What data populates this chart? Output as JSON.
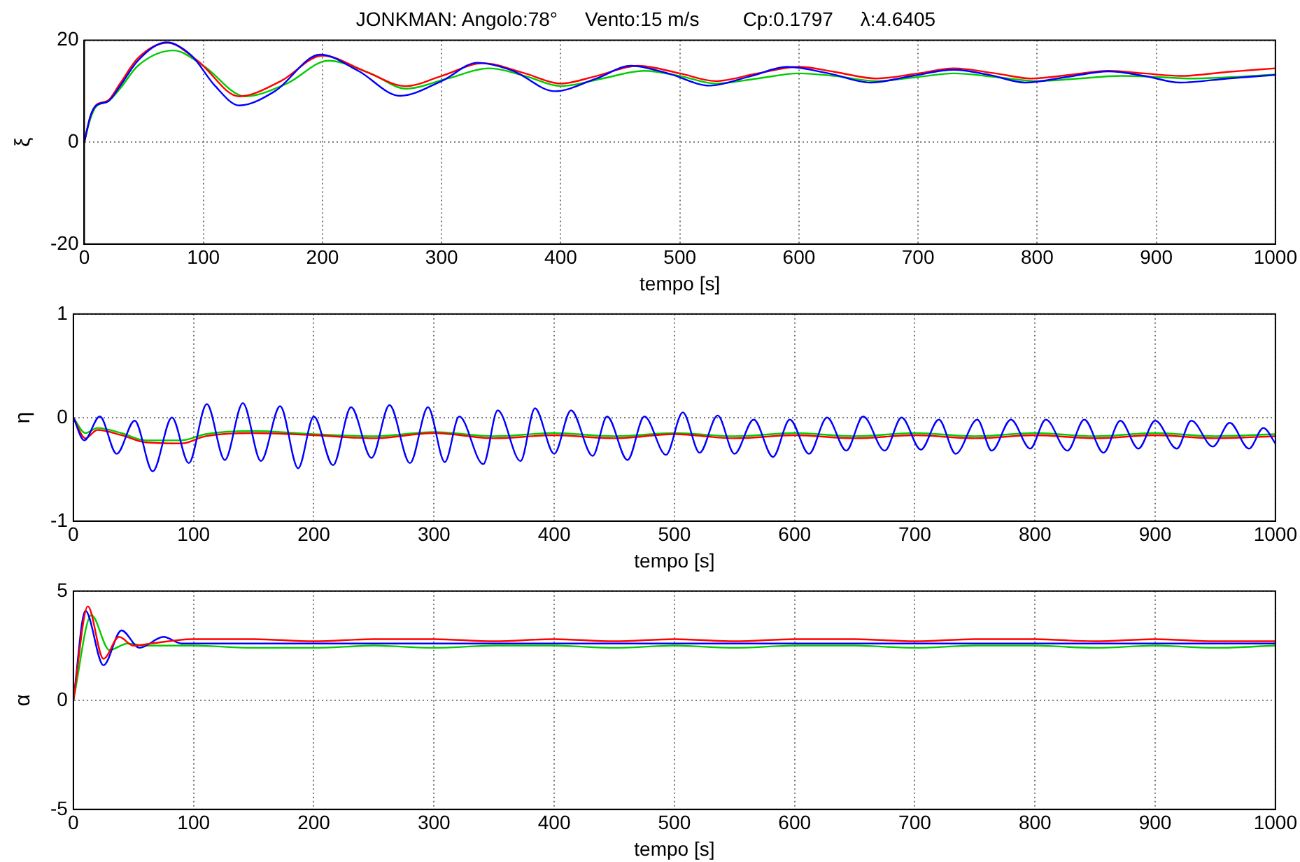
{
  "chart_data": [
    {
      "type": "line",
      "title": "JONKMAN: Angolo:78°     Vento:15 m/s        Cp:0.1797     λ:4.6405",
      "xlabel": "tempo [s]",
      "ylabel": "ξ",
      "xlim": [
        0,
        1000
      ],
      "xticks": [
        0,
        100,
        200,
        300,
        400,
        500,
        600,
        700,
        800,
        900,
        1000
      ],
      "ylim": [
        -20,
        20
      ],
      "yticks": [
        -20,
        0,
        20
      ],
      "grid": true,
      "line_style": "solid",
      "series": [
        {
          "color": "#0000ff",
          "x": [
            0,
            5,
            10,
            20,
            30,
            45,
            69,
            90,
            110,
            130,
            160,
            198,
            230,
            265,
            300,
            330,
            360,
            395,
            430,
            459,
            490,
            525,
            560,
            590,
            625,
            660,
            695,
            730,
            760,
            790,
            825,
            860,
            890,
            920,
            960,
            1000
          ],
          "values": [
            0,
            5,
            7.2,
            8,
            11,
            16,
            19.6,
            17,
            11,
            7.2,
            10,
            17.2,
            14,
            9.1,
            12,
            15.6,
            14,
            10,
            12.5,
            15,
            13.5,
            11.1,
            13,
            14.8,
            13.5,
            11.7,
            13,
            14.2,
            13.2,
            11.7,
            12.8,
            13.9,
            13,
            11.7,
            12.5,
            13.2
          ]
        },
        {
          "color": "#ff0000",
          "x": [
            0,
            5,
            10,
            20,
            30,
            45,
            70,
            95,
            130,
            165,
            200,
            235,
            270,
            300,
            335,
            370,
            400,
            430,
            465,
            500,
            530,
            565,
            600,
            630,
            665,
            700,
            730,
            765,
            795,
            830,
            860,
            890,
            920,
            960,
            1000
          ],
          "values": [
            0,
            5,
            7.3,
            8.2,
            11.5,
            16.5,
            19.5,
            16,
            9,
            12,
            17,
            14,
            11,
            13,
            15.5,
            13.5,
            11.5,
            13,
            15,
            13.5,
            12,
            13.5,
            14.8,
            13.8,
            12.5,
            13.5,
            14.5,
            13.5,
            12.5,
            13.3,
            14,
            13.5,
            13,
            13.8,
            14.5
          ]
        },
        {
          "color": "#00cc00",
          "x": [
            0,
            5,
            10,
            20,
            30,
            45,
            75,
            100,
            135,
            170,
            205,
            240,
            270,
            305,
            340,
            370,
            400,
            435,
            470,
            500,
            530,
            565,
            600,
            630,
            665,
            700,
            730,
            765,
            800,
            835,
            870,
            900,
            930,
            965,
            1000
          ],
          "values": [
            0,
            4.5,
            7,
            8,
            10.5,
            15,
            18,
            15,
            9,
            11.5,
            16,
            13.5,
            10.5,
            12.5,
            14.5,
            13,
            11,
            12.5,
            14,
            13,
            11.5,
            12.5,
            13.5,
            13,
            12,
            12.8,
            13.5,
            12.8,
            12,
            12.5,
            13,
            12.8,
            12.5,
            12.8,
            13.3
          ]
        }
      ]
    },
    {
      "type": "line",
      "xlabel": "tempo [s]",
      "ylabel": "η",
      "xlim": [
        0,
        1000
      ],
      "xticks": [
        0,
        100,
        200,
        300,
        400,
        500,
        600,
        700,
        800,
        900,
        1000
      ],
      "ylim": [
        -1,
        1
      ],
      "yticks": [
        -1,
        0,
        1
      ],
      "grid": true,
      "line_style": "solid",
      "series": [
        {
          "color": "#0000ff",
          "x": [
            0,
            9,
            22,
            36,
            51,
            66,
            82,
            96,
            111,
            126,
            141,
            156,
            172,
            187,
            200,
            216,
            231,
            248,
            263,
            280,
            295,
            309,
            321,
            341,
            353,
            372,
            384,
            400,
            414,
            432,
            444,
            461,
            475,
            493,
            507,
            521,
            536,
            550,
            566,
            582,
            596,
            612,
            627,
            643,
            657,
            675,
            689,
            705,
            720,
            734,
            752,
            764,
            780,
            796,
            809,
            827,
            841,
            857,
            871,
            886,
            900,
            918,
            930,
            948,
            962,
            978,
            990,
            1000
          ],
          "values": [
            0,
            -0.22,
            0.01,
            -0.35,
            -0.03,
            -0.52,
            0,
            -0.44,
            0.13,
            -0.41,
            0.14,
            -0.42,
            0.11,
            -0.49,
            0.01,
            -0.46,
            0.1,
            -0.39,
            0.12,
            -0.44,
            0.1,
            -0.43,
            0.01,
            -0.45,
            0.07,
            -0.42,
            0.09,
            -0.35,
            0.07,
            -0.37,
            0.01,
            -0.41,
            0.01,
            -0.36,
            0.05,
            -0.34,
            0.02,
            -0.35,
            -0.02,
            -0.38,
            -0.02,
            -0.35,
            0,
            -0.32,
            0.01,
            -0.32,
            0,
            -0.31,
            -0.02,
            -0.35,
            -0.02,
            -0.32,
            -0.02,
            -0.3,
            -0.02,
            -0.32,
            -0.02,
            -0.34,
            -0.03,
            -0.3,
            -0.03,
            -0.3,
            -0.03,
            -0.28,
            -0.05,
            -0.3,
            -0.1,
            -0.25
          ]
        },
        {
          "color": "#ff0000",
          "x": [
            0,
            10,
            20,
            40,
            60,
            90,
            110,
            150,
            200,
            250,
            300,
            350,
            400,
            450,
            500,
            550,
            600,
            650,
            700,
            750,
            800,
            850,
            900,
            950,
            1000
          ],
          "values": [
            0,
            -0.2,
            -0.12,
            -0.17,
            -0.24,
            -0.25,
            -0.18,
            -0.15,
            -0.17,
            -0.2,
            -0.15,
            -0.2,
            -0.17,
            -0.2,
            -0.16,
            -0.2,
            -0.17,
            -0.2,
            -0.17,
            -0.2,
            -0.17,
            -0.2,
            -0.17,
            -0.2,
            -0.18
          ]
        },
        {
          "color": "#00cc00",
          "x": [
            0,
            10,
            20,
            40,
            60,
            90,
            110,
            150,
            200,
            250,
            300,
            350,
            400,
            450,
            500,
            550,
            600,
            650,
            700,
            750,
            800,
            850,
            900,
            950,
            1000
          ],
          "values": [
            0,
            -0.15,
            -0.1,
            -0.15,
            -0.22,
            -0.22,
            -0.16,
            -0.13,
            -0.16,
            -0.18,
            -0.14,
            -0.18,
            -0.15,
            -0.18,
            -0.15,
            -0.18,
            -0.15,
            -0.18,
            -0.15,
            -0.18,
            -0.15,
            -0.18,
            -0.15,
            -0.18,
            -0.16
          ]
        }
      ]
    },
    {
      "type": "line",
      "xlabel": "tempo [s]",
      "ylabel": "α",
      "xlim": [
        0,
        1000
      ],
      "xticks": [
        0,
        100,
        200,
        300,
        400,
        500,
        600,
        700,
        800,
        900,
        1000
      ],
      "ylim": [
        -5,
        5
      ],
      "yticks": [
        -5,
        0,
        5
      ],
      "grid": true,
      "line_style": "solid",
      "series": [
        {
          "color": "#ff0000",
          "x": [
            0,
            12,
            25,
            38,
            50,
            65,
            100,
            150,
            200,
            250,
            300,
            350,
            400,
            450,
            500,
            550,
            600,
            650,
            700,
            750,
            800,
            850,
            900,
            950,
            1000
          ],
          "values": [
            0,
            4.3,
            1.9,
            2.9,
            2.5,
            2.6,
            2.8,
            2.8,
            2.7,
            2.8,
            2.8,
            2.7,
            2.8,
            2.7,
            2.8,
            2.7,
            2.8,
            2.8,
            2.7,
            2.8,
            2.8,
            2.7,
            2.8,
            2.7,
            2.7
          ]
        },
        {
          "color": "#0000ff",
          "x": [
            0,
            10,
            25,
            40,
            55,
            75,
            90,
            100,
            150,
            200,
            250,
            300,
            350,
            400,
            450,
            500,
            550,
            600,
            650,
            700,
            750,
            800,
            850,
            900,
            950,
            1000
          ],
          "values": [
            0,
            4.1,
            1.6,
            3.2,
            2.4,
            2.9,
            2.6,
            2.6,
            2.6,
            2.6,
            2.6,
            2.6,
            2.6,
            2.6,
            2.6,
            2.6,
            2.6,
            2.6,
            2.6,
            2.6,
            2.6,
            2.6,
            2.6,
            2.6,
            2.6,
            2.6
          ]
        },
        {
          "color": "#00cc00",
          "x": [
            0,
            15,
            30,
            45,
            60,
            100,
            150,
            200,
            250,
            300,
            350,
            400,
            450,
            500,
            550,
            600,
            650,
            700,
            750,
            800,
            850,
            900,
            950,
            1000
          ],
          "values": [
            0,
            3.9,
            2.3,
            2.6,
            2.5,
            2.5,
            2.4,
            2.4,
            2.5,
            2.4,
            2.5,
            2.5,
            2.4,
            2.5,
            2.4,
            2.5,
            2.5,
            2.4,
            2.5,
            2.5,
            2.4,
            2.5,
            2.4,
            2.5
          ]
        }
      ]
    }
  ]
}
